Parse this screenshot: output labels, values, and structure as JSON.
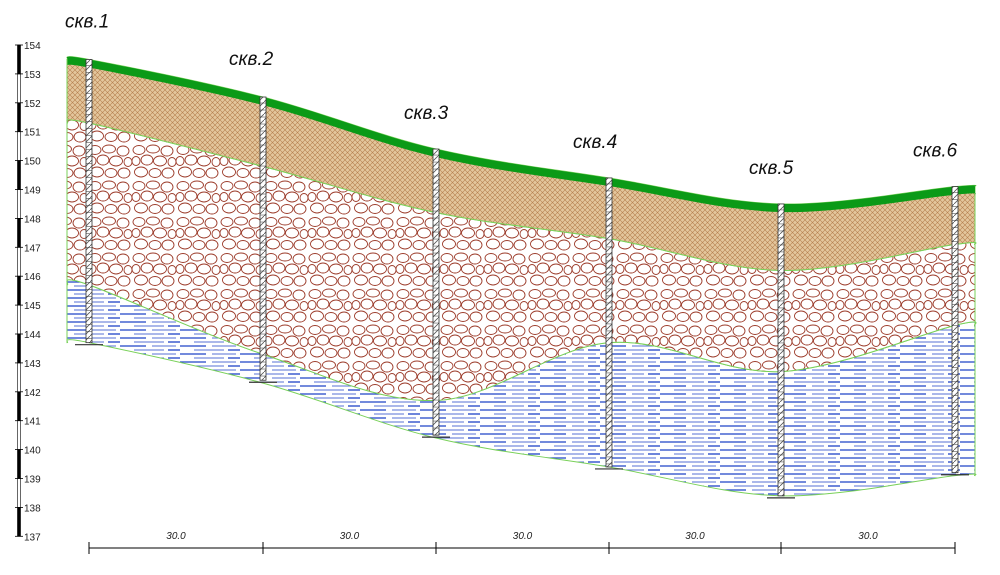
{
  "elevation_scale": {
    "ticks": [
      "154",
      "153",
      "152",
      "151",
      "150",
      "149",
      "148",
      "147",
      "146",
      "145",
      "144",
      "143",
      "142",
      "141",
      "140",
      "139",
      "138",
      "137"
    ]
  },
  "wells": [
    {
      "label": "скв.1",
      "top": 153.5,
      "bottom": 143.7
    },
    {
      "label": "скв.2",
      "top": 152.2,
      "bottom": 142.4
    },
    {
      "label": "скв.3",
      "top": 150.4,
      "bottom": 140.5
    },
    {
      "label": "скв.4",
      "top": 149.4,
      "bottom": 139.4
    },
    {
      "label": "скв.5",
      "top": 148.5,
      "bottom": 138.4
    },
    {
      "label": "скв.6",
      "top": 149.1,
      "bottom": 139.2
    }
  ],
  "layers": {
    "ground_surface": [
      153.5,
      152.2,
      150.4,
      149.4,
      148.5,
      149.1
    ],
    "loam_bottom": [
      151.3,
      149.8,
      148.2,
      147.3,
      146.2,
      147.1
    ],
    "gravel_bottom": [
      145.7,
      143.3,
      141.7,
      143.7,
      142.7,
      144.3
    ],
    "sand_bottom": [
      143.7,
      142.3,
      140.4,
      139.4,
      138.4,
      139.1
    ]
  },
  "spacings": [
    "30.0",
    "30.0",
    "30.0",
    "30.0",
    "30.0"
  ],
  "colors": {
    "soil": "#0b9a17",
    "loam_fill": "#e3c69c",
    "loam_hatch": "#b5814f",
    "gravel_fill": "#ffffff",
    "gravel_stroke": "#9c3b2a",
    "sand_fill": "#ffffff",
    "sand_stroke": "#1f43c8",
    "boundary": "#7ad15a"
  }
}
